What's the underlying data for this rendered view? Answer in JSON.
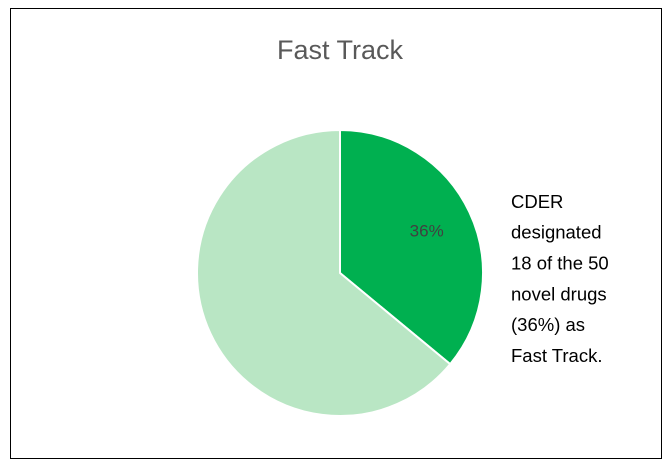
{
  "chart_data": {
    "type": "pie",
    "title": "Fast Track",
    "values": [
      36,
      64
    ],
    "value_labels": [
      "36%",
      null
    ],
    "colors": [
      "#00b050",
      "#b9e6c4"
    ],
    "annotation": [
      "CDER",
      "designated",
      "18 of the 50",
      "novel drugs",
      "(36%) as",
      "Fast Track."
    ]
  }
}
